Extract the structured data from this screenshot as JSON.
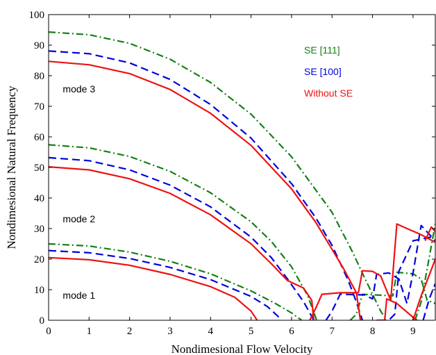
{
  "chart_data": {
    "type": "line",
    "xlabel": "Nondimesional Flow Velocity",
    "ylabel": "Nondimesional Natural Frequency",
    "xlim": [
      0,
      9.55
    ],
    "ylim": [
      0,
      100
    ],
    "xticks": [
      0,
      1,
      2,
      3,
      4,
      5,
      6,
      7,
      8,
      9
    ],
    "yticks": [
      0,
      10,
      20,
      30,
      40,
      50,
      60,
      70,
      80,
      90,
      100
    ],
    "grid": false,
    "legend_position": "top-right",
    "annotations": [
      {
        "text": "mode 3",
        "x": 0.35,
        "y": 74.5
      },
      {
        "text": "mode 2",
        "x": 0.35,
        "y": 32.0
      },
      {
        "text": "mode 1",
        "x": 0.35,
        "y": 7.0
      }
    ],
    "series": [
      {
        "name": "SE [111]",
        "color": "#138013",
        "dash": "dashdot",
        "curves": [
          [
            [
              0,
              94.3
            ],
            [
              1,
              93.4
            ],
            [
              2,
              90.6
            ],
            [
              3,
              85.4
            ],
            [
              4,
              77.8
            ],
            [
              5,
              67.4
            ],
            [
              6,
              53.5
            ],
            [
              7,
              35.3
            ],
            [
              7.5,
              22.5
            ],
            [
              7.8,
              14
            ],
            [
              8.0,
              8.5
            ],
            [
              8.2,
              3
            ],
            [
              8.35,
              0
            ]
          ],
          [
            [
              0,
              57.4
            ],
            [
              1,
              56.4
            ],
            [
              2,
              53.6
            ],
            [
              3,
              48.7
            ],
            [
              4,
              41.7
            ],
            [
              5,
              32.2
            ],
            [
              5.5,
              25.8
            ],
            [
              6,
              17.5
            ],
            [
              6.4,
              8
            ],
            [
              6.62,
              0
            ]
          ],
          [
            [
              0,
              25
            ],
            [
              1,
              24.3
            ],
            [
              2,
              22.3
            ],
            [
              3,
              19.3
            ],
            [
              4,
              15.2
            ],
            [
              5,
              9.6
            ],
            [
              5.6,
              5.5
            ],
            [
              6.0,
              2.4
            ],
            [
              6.25,
              0
            ]
          ],
          [
            [
              7.45,
              0
            ],
            [
              7.6,
              2
            ],
            [
              7.75,
              8.5
            ],
            [
              8.2,
              8.2
            ],
            [
              8.5,
              8
            ],
            [
              8.6,
              15.7
            ],
            [
              9.0,
              15.2
            ],
            [
              9.2,
              13.5
            ],
            [
              9.35,
              6.5
            ],
            [
              9.55,
              5.5
            ]
          ],
          [
            [
              9.05,
              0
            ],
            [
              9.2,
              6
            ],
            [
              9.55,
              31.5
            ]
          ]
        ]
      },
      {
        "name": "SE [100]",
        "color": "#0000dd",
        "dash": "dashed",
        "curves": [
          [
            [
              0,
              88.1
            ],
            [
              1,
              87.2
            ],
            [
              2,
              84.2
            ],
            [
              3,
              78.8
            ],
            [
              4,
              70.6
            ],
            [
              5,
              59.6
            ],
            [
              6,
              44.7
            ],
            [
              6.6,
              33.5
            ],
            [
              7,
              24.5
            ],
            [
              7.4,
              13
            ],
            [
              7.6,
              6
            ],
            [
              7.75,
              0
            ]
          ],
          [
            [
              0,
              53.2
            ],
            [
              1,
              52.2
            ],
            [
              2,
              49.2
            ],
            [
              3,
              44.2
            ],
            [
              4,
              37.1
            ],
            [
              5,
              27.2
            ],
            [
              5.5,
              20.5
            ],
            [
              5.9,
              13.5
            ],
            [
              6.3,
              6
            ],
            [
              6.55,
              0
            ]
          ],
          [
            [
              0,
              22.8
            ],
            [
              1,
              22.1
            ],
            [
              2,
              20.2
            ],
            [
              3,
              17.3
            ],
            [
              4,
              13.3
            ],
            [
              5,
              7.8
            ],
            [
              5.4,
              4.5
            ],
            [
              5.65,
              1.5
            ],
            [
              5.75,
              0
            ]
          ],
          [
            [
              6.85,
              0
            ],
            [
              7.0,
              3
            ],
            [
              7.2,
              8.5
            ],
            [
              7.8,
              8.3
            ],
            [
              8.0,
              7
            ],
            [
              8.1,
              15
            ],
            [
              8.4,
              15.5
            ],
            [
              8.65,
              13.5
            ],
            [
              8.85,
              5.5
            ],
            [
              9.0,
              15.5
            ],
            [
              9.2,
              31
            ],
            [
              9.55,
              26
            ]
          ],
          [
            [
              8.15,
              0
            ],
            [
              8.4,
              0
            ],
            [
              8.55,
              2
            ],
            [
              8.65,
              16
            ],
            [
              9.0,
              26
            ],
            [
              9.55,
              27.5
            ]
          ],
          [
            [
              9.25,
              0
            ],
            [
              9.4,
              7
            ],
            [
              9.55,
              12
            ]
          ]
        ]
      },
      {
        "name": "Without SE",
        "color": "#ee1111",
        "dash": "solid",
        "curves": [
          [
            [
              0,
              84.7
            ],
            [
              1,
              83.6
            ],
            [
              2,
              80.7
            ],
            [
              3,
              75.5
            ],
            [
              4,
              67.7
            ],
            [
              5,
              57.2
            ],
            [
              6,
              43
            ],
            [
              6.6,
              32
            ],
            [
              7,
              23.2
            ],
            [
              7.3,
              16.5
            ],
            [
              7.6,
              9
            ],
            [
              7.7,
              0
            ]
          ],
          [
            [
              0,
              50.2
            ],
            [
              1,
              49.2
            ],
            [
              2,
              46.3
            ],
            [
              3,
              41.5
            ],
            [
              4,
              34.5
            ],
            [
              5,
              25
            ],
            [
              5.5,
              18.5
            ],
            [
              5.9,
              13
            ],
            [
              6.3,
              10.5
            ],
            [
              6.5,
              6.5
            ],
            [
              6.55,
              0
            ]
          ],
          [
            [
              0,
              20.5
            ],
            [
              1,
              19.8
            ],
            [
              2,
              18
            ],
            [
              3,
              15
            ],
            [
              4,
              11
            ],
            [
              4.6,
              7.5
            ],
            [
              5.0,
              3
            ],
            [
              5.15,
              0
            ]
          ],
          [
            [
              6.45,
              0
            ],
            [
              6.6,
              4
            ],
            [
              6.75,
              8.5
            ],
            [
              7.2,
              9
            ],
            [
              7.65,
              9
            ],
            [
              7.75,
              16.2
            ],
            [
              8.0,
              16
            ],
            [
              8.2,
              14.5
            ],
            [
              8.45,
              6.5
            ],
            [
              8.6,
              31.5
            ],
            [
              8.85,
              30
            ],
            [
              9.2,
              28
            ],
            [
              9.55,
              25.5
            ]
          ],
          [
            [
              8.1,
              0
            ],
            [
              8.3,
              0
            ],
            [
              8.35,
              7
            ],
            [
              8.6,
              5.5
            ],
            [
              9.0,
              1
            ],
            [
              9.1,
              0
            ]
          ],
          [
            [
              9.0,
              0
            ],
            [
              9.2,
              8
            ],
            [
              9.35,
              13
            ],
            [
              9.55,
              20
            ]
          ],
          [
            [
              9.3,
              26
            ],
            [
              9.45,
              30.5
            ],
            [
              9.55,
              29
            ]
          ]
        ]
      }
    ]
  }
}
